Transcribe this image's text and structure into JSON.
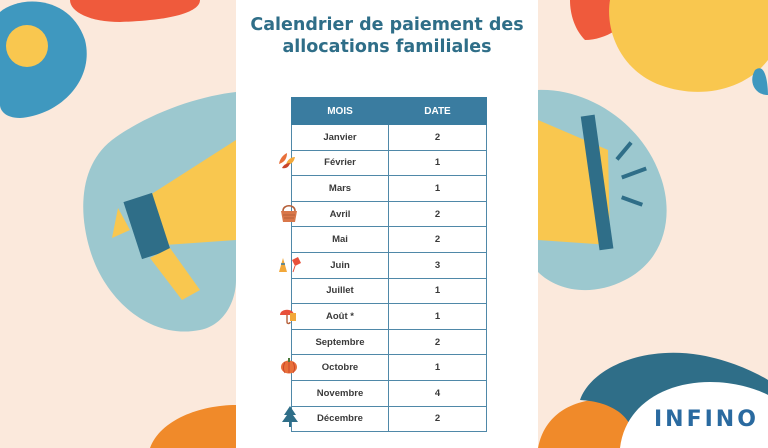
{
  "title_line1": "Calendrier de paiement des",
  "title_line2": "allocations familiales",
  "table": {
    "headers": [
      "MOIS",
      "DATE"
    ],
    "rows": [
      {
        "mois": "Janvier",
        "date": "2"
      },
      {
        "mois": "Février",
        "date": "1"
      },
      {
        "mois": "Mars",
        "date": "1"
      },
      {
        "mois": "Avril",
        "date": "2"
      },
      {
        "mois": "Mai",
        "date": "2"
      },
      {
        "mois": "Juin",
        "date": "3"
      },
      {
        "mois": "Juillet",
        "date": "1"
      },
      {
        "mois": "Août *",
        "date": "1"
      },
      {
        "mois": "Septembre",
        "date": "2"
      },
      {
        "mois": "Octobre",
        "date": "1"
      },
      {
        "mois": "Novembre",
        "date": "4"
      },
      {
        "mois": "Décembre",
        "date": "2"
      }
    ]
  },
  "logo": "INFINO",
  "colors": {
    "title": "#2f6e88",
    "header": "#3a7ca0",
    "background": "#fbe9dc",
    "yellow": "#f9c74f",
    "red": "#ef5a3c",
    "teal": "#9cc8cf",
    "blue": "#2a6aa0",
    "orange": "#f08a2a"
  },
  "icons": [
    "leaves-icon",
    "basket-icon",
    "kite-icon",
    "umbrella-icon",
    "pumpkin-icon",
    "pine-tree-icon",
    "megaphone-icon"
  ]
}
